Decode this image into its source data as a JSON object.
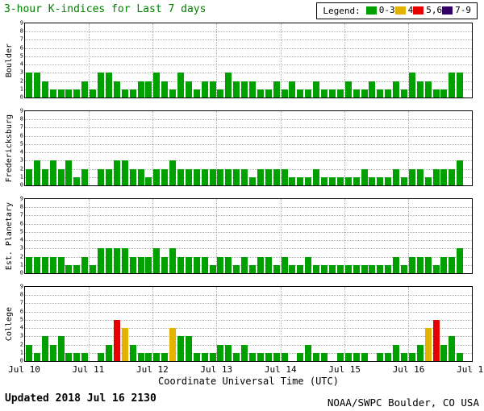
{
  "title": "3-hour K-indices for Last 7 days",
  "legend": {
    "label": "Legend:",
    "items": [
      {
        "label": "0-3",
        "color": "#00a000"
      },
      {
        "label": "4",
        "color": "#e3b300"
      },
      {
        "label": "5,6",
        "color": "#e60000"
      },
      {
        "label": "7-9",
        "color": "#330066"
      }
    ]
  },
  "xlabel": "Coordinate Universal Time (UTC)",
  "footer": {
    "updated": "Updated 2018 Jul 16 2130",
    "source": "NOAA/SWPC Boulder, CO USA"
  },
  "chart_data": {
    "type": "bar",
    "title": "3-hour K-indices for Last 7 days",
    "xlabel": "Coordinate Universal Time (UTC)",
    "x_tick_labels": [
      "Jul 10",
      "Jul 11",
      "Jul 12",
      "Jul 13",
      "Jul 14",
      "Jul 15",
      "Jul 16",
      "Jul 17"
    ],
    "y_ticks": [
      0,
      1,
      2,
      3,
      4,
      5,
      6,
      7,
      8,
      9
    ],
    "ylim": [
      0,
      9
    ],
    "days": 7,
    "bars_per_day": 8,
    "grid": "dotted",
    "legend_position": "top-right",
    "color_rules": [
      {
        "max": 3,
        "color": "#00a000"
      },
      {
        "max": 4,
        "color": "#e3b300"
      },
      {
        "max": 6,
        "color": "#e60000"
      },
      {
        "max": 9,
        "color": "#330066"
      }
    ],
    "panels": [
      {
        "station": "Boulder",
        "values": [
          3,
          3,
          2,
          1,
          1,
          1,
          1,
          2,
          1,
          3,
          3,
          2,
          1,
          1,
          2,
          2,
          3,
          2,
          1,
          3,
          2,
          1,
          2,
          2,
          1,
          3,
          2,
          2,
          2,
          1,
          1,
          2,
          1,
          2,
          1,
          1,
          2,
          1,
          1,
          1,
          2,
          1,
          1,
          2,
          1,
          1,
          2,
          1,
          3,
          2,
          2,
          1,
          1,
          3,
          3,
          null
        ]
      },
      {
        "station": "Fredericksburg",
        "values": [
          2,
          3,
          2,
          3,
          2,
          3,
          1,
          2,
          0,
          2,
          2,
          3,
          3,
          2,
          2,
          1,
          2,
          2,
          3,
          2,
          2,
          2,
          2,
          2,
          2,
          2,
          2,
          2,
          1,
          2,
          2,
          2,
          2,
          1,
          1,
          1,
          2,
          1,
          1,
          1,
          1,
          1,
          2,
          1,
          1,
          1,
          2,
          1,
          2,
          2,
          1,
          2,
          2,
          2,
          3,
          null
        ]
      },
      {
        "station": "Est. Planetary",
        "values": [
          2,
          2,
          2,
          2,
          2,
          1,
          1,
          2,
          1,
          3,
          3,
          3,
          3,
          2,
          2,
          2,
          3,
          2,
          3,
          2,
          2,
          2,
          2,
          1,
          2,
          2,
          1,
          2,
          1,
          2,
          2,
          1,
          2,
          1,
          1,
          2,
          1,
          1,
          1,
          1,
          1,
          1,
          1,
          1,
          1,
          1,
          2,
          1,
          2,
          2,
          2,
          1,
          2,
          2,
          3,
          null
        ]
      },
      {
        "station": "College",
        "values": [
          2,
          1,
          3,
          2,
          3,
          1,
          1,
          1,
          0,
          1,
          2,
          5,
          4,
          2,
          1,
          1,
          1,
          1,
          4,
          3,
          3,
          1,
          1,
          1,
          2,
          2,
          1,
          2,
          1,
          1,
          1,
          1,
          1,
          0,
          1,
          2,
          1,
          1,
          0,
          1,
          1,
          1,
          1,
          0,
          1,
          1,
          2,
          1,
          1,
          2,
          4,
          5,
          2,
          3,
          1,
          null
        ]
      }
    ]
  }
}
